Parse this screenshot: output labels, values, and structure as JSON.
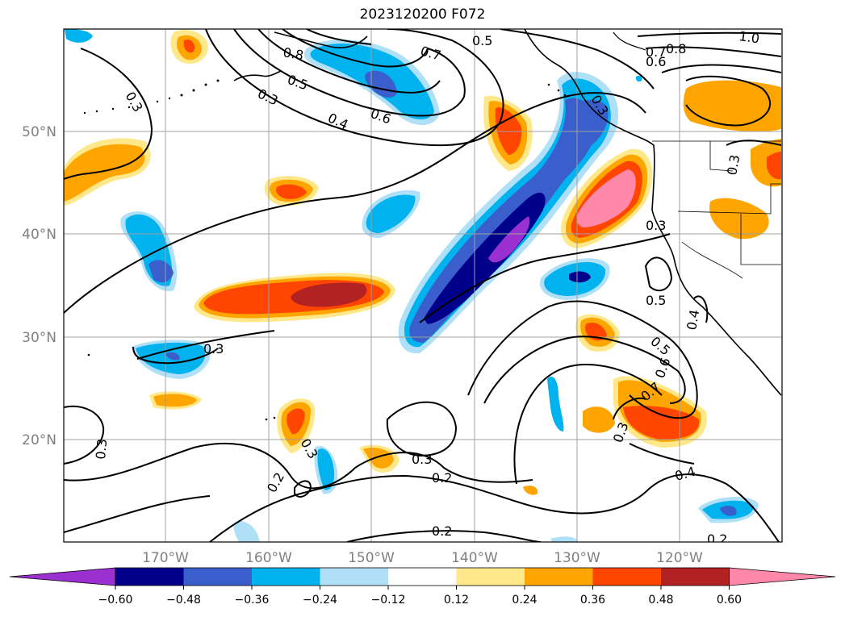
{
  "title": "2023120200 F072",
  "map": {
    "lat_labels": [
      "50°N",
      "40°N",
      "30°N",
      "20°N"
    ],
    "lon_labels": [
      "170°W",
      "160°W",
      "150°W",
      "140°W",
      "130°W",
      "120°W"
    ]
  },
  "colorbar": {
    "ticks": [
      "−0.60",
      "−0.48",
      "−0.36",
      "−0.24",
      "−0.12",
      "0.12",
      "0.24",
      "0.36",
      "0.48",
      "0.60"
    ],
    "colors": [
      "#9b30d0",
      "#00008b",
      "#3a5fcd",
      "#00b2ee",
      "#b0e0f8",
      "#ffffff",
      "#ffe88a",
      "#ffa500",
      "#ff4500",
      "#b22222",
      "#ff88aa"
    ]
  },
  "contour_labels": [
    "0.3",
    "0.5",
    "0.7",
    "0.8",
    "1.0",
    "0.6",
    "0.4",
    "0.2"
  ]
}
